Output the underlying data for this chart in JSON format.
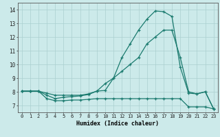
{
  "xlabel": "Humidex (Indice chaleur)",
  "bg_color": "#cceaea",
  "grid_color": "#aacfcf",
  "line_color": "#1a7a6e",
  "xlim": [
    -0.5,
    23.5
  ],
  "ylim": [
    6.5,
    14.5
  ],
  "xticks": [
    0,
    1,
    2,
    3,
    4,
    5,
    6,
    7,
    8,
    9,
    10,
    11,
    12,
    13,
    14,
    15,
    16,
    17,
    18,
    19,
    20,
    21,
    22,
    23
  ],
  "yticks": [
    7,
    8,
    9,
    10,
    11,
    12,
    13,
    14
  ],
  "line1_x": [
    0,
    1,
    2,
    3,
    4,
    5,
    6,
    7,
    8,
    9,
    10,
    11,
    12,
    13,
    14,
    15,
    16,
    17,
    18,
    19,
    20,
    21,
    22,
    23
  ],
  "line1_y": [
    8.05,
    8.05,
    8.05,
    7.75,
    7.5,
    7.6,
    7.65,
    7.7,
    7.8,
    8.05,
    8.1,
    9.0,
    10.5,
    11.5,
    12.5,
    13.3,
    13.9,
    13.85,
    13.5,
    9.8,
    7.9,
    7.85,
    8.0,
    6.75
  ],
  "line2_x": [
    0,
    1,
    2,
    3,
    4,
    5,
    6,
    7,
    8,
    9,
    10,
    11,
    12,
    13,
    14,
    15,
    16,
    17,
    18,
    19,
    20,
    21,
    22,
    23
  ],
  "line2_y": [
    8.05,
    8.05,
    8.05,
    7.9,
    7.75,
    7.75,
    7.75,
    7.75,
    7.85,
    8.05,
    8.6,
    9.0,
    9.5,
    10.0,
    10.5,
    11.5,
    12.0,
    12.5,
    12.5,
    10.5,
    8.0,
    7.85,
    8.0,
    6.75
  ],
  "line3_x": [
    0,
    1,
    2,
    3,
    4,
    5,
    6,
    7,
    8,
    9,
    10,
    11,
    12,
    13,
    14,
    15,
    16,
    17,
    18,
    19,
    20,
    21,
    22,
    23
  ],
  "line3_y": [
    8.05,
    8.05,
    8.05,
    7.5,
    7.35,
    7.35,
    7.4,
    7.4,
    7.45,
    7.5,
    7.5,
    7.5,
    7.5,
    7.5,
    7.5,
    7.5,
    7.5,
    7.5,
    7.5,
    7.5,
    6.9,
    6.9,
    6.9,
    6.75
  ]
}
